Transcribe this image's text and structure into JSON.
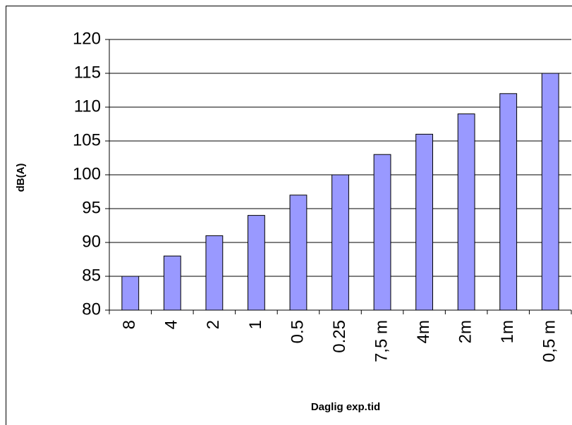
{
  "chart_data": {
    "type": "bar",
    "x_label": "Daglig exp.tid",
    "y_label": "dB(A)",
    "categories": [
      "8",
      "4",
      "2",
      "1",
      "0.5",
      "0.25",
      "7,5 m",
      "4m",
      "2m",
      "1m",
      "0,5 m"
    ],
    "values": [
      85,
      88,
      91,
      94,
      97,
      100,
      103,
      106,
      109,
      112,
      115
    ],
    "color": "#9999ff",
    "ylim": [
      80,
      120
    ],
    "yticks": [
      80,
      85,
      90,
      95,
      100,
      105,
      110,
      115,
      120
    ],
    "grid": true
  }
}
